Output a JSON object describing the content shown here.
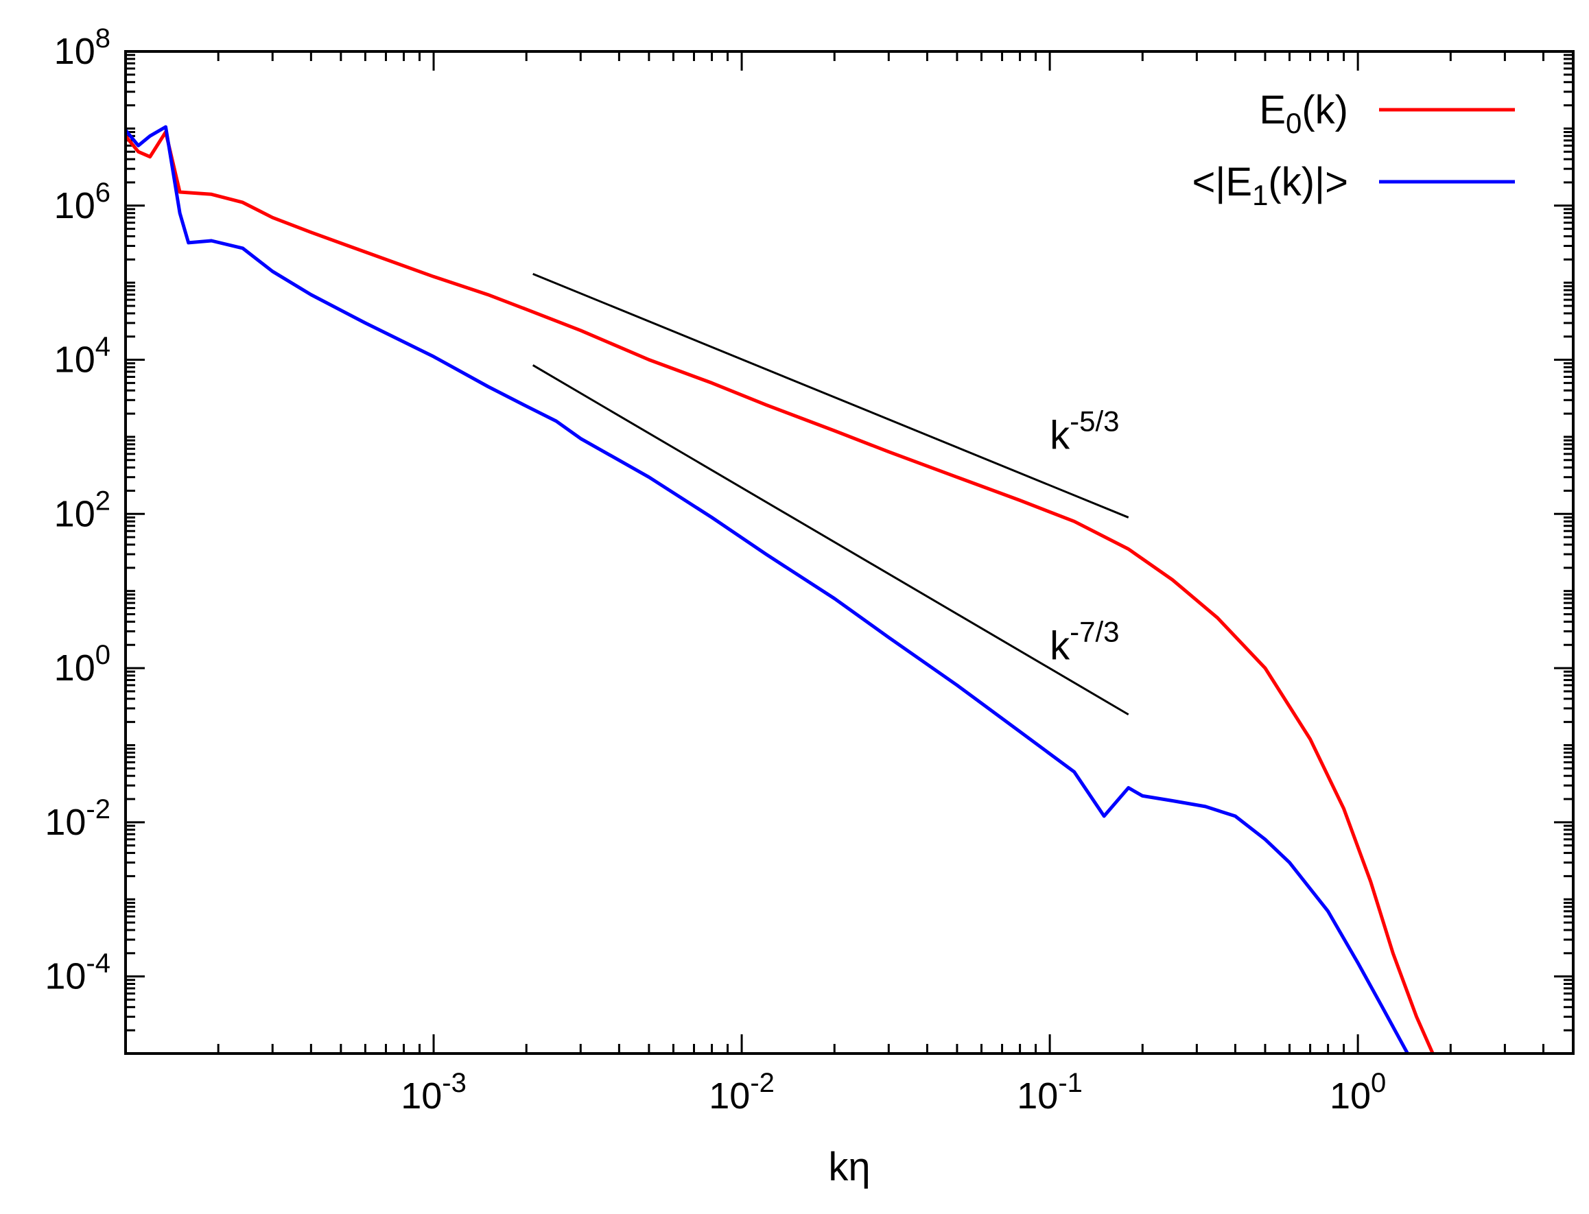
{
  "chart_data": {
    "type": "line",
    "title": "",
    "xlabel": "kη",
    "ylabel": "",
    "xscale": "log",
    "yscale": "log",
    "xlim": [
      0.0001,
      5.0
    ],
    "ylim": [
      1e-05,
      100000000.0
    ],
    "grid": false,
    "legend_position": "top-right",
    "x_ticks": [
      {
        "value": 0.001,
        "base": "10",
        "exp": "-3"
      },
      {
        "value": 0.01,
        "base": "10",
        "exp": "-2"
      },
      {
        "value": 0.1,
        "base": "10",
        "exp": "-1"
      },
      {
        "value": 1,
        "base": "10",
        "exp": "0"
      }
    ],
    "y_ticks": [
      {
        "value": 0.0001,
        "base": "10",
        "exp": "-4"
      },
      {
        "value": 0.01,
        "base": "10",
        "exp": "-2"
      },
      {
        "value": 1,
        "base": "10",
        "exp": "0"
      },
      {
        "value": 100,
        "base": "10",
        "exp": "2"
      },
      {
        "value": 10000,
        "base": "10",
        "exp": "4"
      },
      {
        "value": 1000000,
        "base": "10",
        "exp": "6"
      },
      {
        "value": 100000000,
        "base": "10",
        "exp": "8"
      }
    ],
    "series": [
      {
        "name": "E0(k)",
        "label_main": "E",
        "label_sub": "0",
        "label_tail": "(k)",
        "color": "#ff0000",
        "x": [
          0.0001,
          0.00011,
          0.00012,
          0.000135,
          0.00015,
          0.00019,
          0.00024,
          0.0003,
          0.0004,
          0.0006,
          0.001,
          0.0015,
          0.002,
          0.003,
          0.005,
          0.008,
          0.012,
          0.02,
          0.03,
          0.05,
          0.08,
          0.12,
          0.18,
          0.25,
          0.35,
          0.5,
          0.7,
          0.9,
          1.1,
          1.3,
          1.55,
          1.75
        ],
        "y": [
          8000000.0,
          5000000.0,
          4300000.0,
          9000000.0,
          1500000.0,
          1400000.0,
          1100000.0,
          700000.0,
          450000.0,
          250000.0,
          120000.0,
          70000.0,
          45000.0,
          24000.0,
          10000.0,
          5000.0,
          2600.0,
          1200.0,
          640.0,
          300.0,
          150.0,
          80.0,
          35.0,
          14.0,
          4.5,
          1.0,
          0.12,
          0.015,
          0.0017,
          0.0002,
          3e-05,
          1e-05
        ]
      },
      {
        "name": "<|E1(k)|>",
        "label_main": "<|E",
        "label_sub": "1",
        "label_tail": "(k)|>",
        "color": "#0000ff",
        "x": [
          0.0001,
          0.00011,
          0.00012,
          0.000135,
          0.00015,
          0.00016,
          0.00019,
          0.00024,
          0.0003,
          0.0004,
          0.0006,
          0.001,
          0.0015,
          0.002,
          0.0025,
          0.003,
          0.005,
          0.008,
          0.012,
          0.02,
          0.03,
          0.05,
          0.08,
          0.12,
          0.15,
          0.18,
          0.2,
          0.25,
          0.32,
          0.4,
          0.5,
          0.6,
          0.8,
          1.0,
          1.2,
          1.45
        ],
        "y": [
          9500000.0,
          6000000.0,
          8000000.0,
          10500000.0,
          800000.0,
          330000.0,
          350000.0,
          280000.0,
          140000.0,
          70000.0,
          30000.0,
          11000.0,
          4500.0,
          2500.0,
          1600.0,
          950.0,
          300.0,
          90.0,
          30.0,
          8.0,
          2.5,
          0.6,
          0.15,
          0.045,
          0.012,
          0.028,
          0.022,
          0.019,
          0.016,
          0.012,
          0.006,
          0.003,
          0.0007,
          0.00015,
          4e-05,
          1e-05
        ]
      }
    ],
    "reference_lines": [
      {
        "name": "k^-5/3",
        "x": [
          0.0021,
          0.18
        ],
        "y": [
          130000.0,
          90.0
        ],
        "color": "#000000"
      },
      {
        "name": "k^-7/3",
        "x": [
          0.0021,
          0.18
        ],
        "y": [
          8500.0,
          0.25
        ],
        "color": "#000000"
      }
    ],
    "annotations": [
      {
        "base": "k",
        "exp": "-5/3",
        "x": 0.1,
        "y": 700
      },
      {
        "base": "k",
        "exp": "-7/3",
        "x": 0.1,
        "y": 1.3
      }
    ]
  }
}
